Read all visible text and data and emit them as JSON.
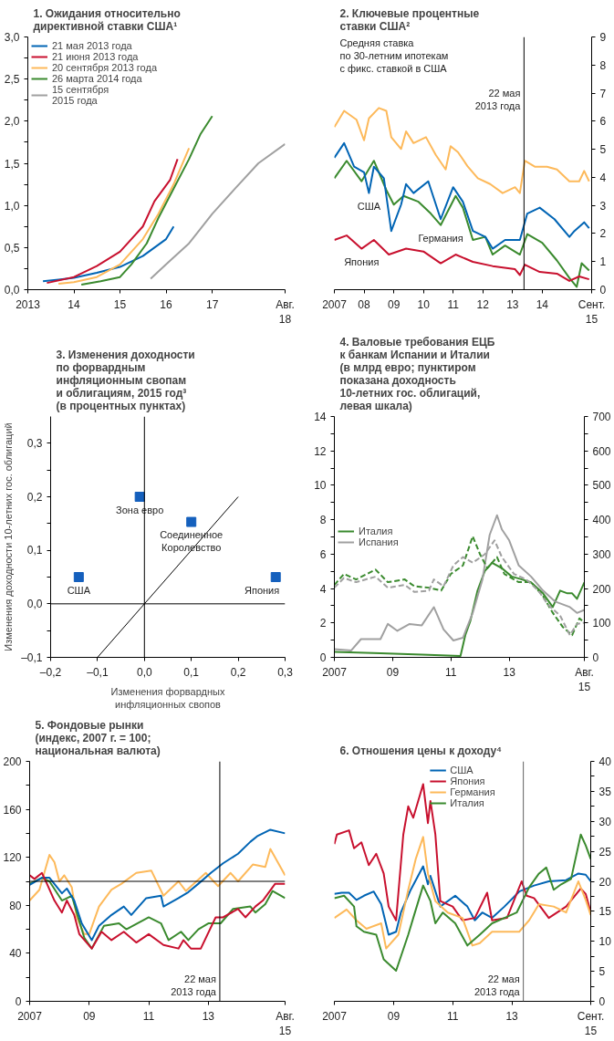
{
  "chart_data": [
    {
      "type": "line",
      "title": "1. Ожидания относительно\nдирективной ставки США¹",
      "xlim": [
        "2013-01",
        "2018-08"
      ],
      "xticks": [
        {
          "value": "2013-01",
          "label": "2013"
        },
        {
          "value": "2014-01",
          "label": "14"
        },
        {
          "value": "2015-01",
          "label": "15"
        },
        {
          "value": "2016-01",
          "label": "16"
        },
        {
          "value": "2017-01",
          "label": "17"
        },
        {
          "value": "2018-08",
          "label": "Авг.\n18"
        }
      ],
      "ylim": [
        0,
        3
      ],
      "yticks": [
        {
          "value": 0,
          "label": "0,0"
        },
        {
          "value": 0.25,
          "label": null
        },
        {
          "value": 0.5,
          "label": "0,5"
        },
        {
          "value": 0.75,
          "label": null
        },
        {
          "value": 1,
          "label": "1,0"
        },
        {
          "value": 1.25,
          "label": null
        },
        {
          "value": 1.5,
          "label": "1,5"
        },
        {
          "value": 1.75,
          "label": null
        },
        {
          "value": 2,
          "label": "2,0"
        },
        {
          "value": 2.25,
          "label": null
        },
        {
          "value": 2.5,
          "label": "2,5"
        },
        {
          "value": 2.75,
          "label": null
        },
        {
          "value": 3,
          "label": "3,0"
        }
      ],
      "legend": "top left",
      "series": [
        {
          "name": "21 мая 2013 года",
          "color": "#0064b4",
          "x": [
            "2013-05",
            "2013-09",
            "2014-01",
            "2014-07",
            "2015-01",
            "2015-07",
            "2015-10",
            "2016-01",
            "2016-03"
          ],
          "values": [
            0.1,
            0.12,
            0.14,
            0.2,
            0.27,
            0.4,
            0.5,
            0.6,
            0.75
          ]
        },
        {
          "name": "21 июня 2013 года",
          "color": "#c8102e",
          "x": [
            "2013-06",
            "2014-01",
            "2014-07",
            "2015-01",
            "2015-07",
            "2015-10",
            "2016-02",
            "2016-04"
          ],
          "values": [
            0.08,
            0.15,
            0.28,
            0.45,
            0.75,
            1.05,
            1.3,
            1.55
          ]
        },
        {
          "name": "20 сентября 2013 года",
          "color": "#fdb95a",
          "x": [
            "2013-09",
            "2014-01",
            "2014-07",
            "2015-01",
            "2015-07",
            "2015-11",
            "2016-03",
            "2016-07"
          ],
          "values": [
            0.07,
            0.09,
            0.15,
            0.3,
            0.6,
            0.9,
            1.25,
            1.68
          ]
        },
        {
          "name": "26 марта 2014 года",
          "color": "#3a8a2e",
          "x": [
            "2014-03",
            "2014-08",
            "2015-01",
            "2015-04",
            "2015-08",
            "2015-11",
            "2016-03",
            "2016-07",
            "2016-10",
            "2017-01"
          ],
          "values": [
            0.06,
            0.1,
            0.15,
            0.3,
            0.55,
            0.85,
            1.2,
            1.55,
            1.85,
            2.06
          ]
        },
        {
          "name": "15 сентября\n2015 года",
          "color": "#a0a0a0",
          "x": [
            "2015-09",
            "2016-01",
            "2016-07",
            "2017-01",
            "2017-07",
            "2018-01",
            "2018-08"
          ],
          "values": [
            0.13,
            0.3,
            0.55,
            0.9,
            1.2,
            1.5,
            1.73
          ]
        }
      ]
    },
    {
      "type": "line",
      "title": "2. Ключевые процентные\nставки США²",
      "subtitle": "Средняя ставка\nпо 30-летним ипотекам\nс фикс. ставкой в США",
      "xlim": [
        "2007-01",
        "2015-09"
      ],
      "xticks": [
        {
          "value": "2007-01",
          "label": "2007"
        },
        {
          "value": "2008-01",
          "label": "08"
        },
        {
          "value": "2009-01",
          "label": "09"
        },
        {
          "value": "2010-01",
          "label": "10"
        },
        {
          "value": "2011-01",
          "label": "11"
        },
        {
          "value": "2012-01",
          "label": "12"
        },
        {
          "value": "2013-01",
          "label": "13"
        },
        {
          "value": "2014-01",
          "label": "14"
        },
        {
          "value": "2015-09",
          "label": "Сент.\n15"
        }
      ],
      "y2lim": [
        0,
        9
      ],
      "y2ticks": [
        0,
        1,
        2,
        3,
        4,
        5,
        6,
        7,
        8,
        9
      ],
      "ref_lines": [
        {
          "axis": "x",
          "value": "2013-05-22",
          "color": "#000000",
          "label": "22 мая\n2013 года"
        }
      ],
      "series": [
        {
          "color": "#fdb95a",
          "axis": "y2",
          "x": [
            "2007-01",
            "2007-05",
            "2007-10",
            "2008-01",
            "2008-03",
            "2008-07",
            "2008-10",
            "2008-12",
            "2009-04",
            "2009-06",
            "2009-09",
            "2010-02",
            "2010-06",
            "2010-10",
            "2010-12",
            "2011-03",
            "2011-07",
            "2011-11",
            "2012-04",
            "2012-09",
            "2013-02",
            "2013-04",
            "2013-06",
            "2013-10",
            "2014-03",
            "2014-07",
            "2014-12",
            "2015-04",
            "2015-06",
            "2015-08"
          ],
          "values": [
            5.79,
            6.37,
            6.05,
            5.32,
            6.1,
            6.47,
            6.37,
            5.43,
            5.01,
            5.64,
            5.22,
            5.43,
            4.8,
            4.28,
            5.11,
            4.9,
            4.38,
            3.97,
            3.76,
            3.44,
            3.65,
            3.44,
            4.59,
            4.38,
            4.38,
            4.28,
            3.86,
            3.86,
            4.23,
            3.86
          ]
        },
        {
          "name": "Германия",
          "color": "#3a8a2e",
          "axis": "y2",
          "x": [
            "2007-01",
            "2007-06",
            "2007-12",
            "2008-05",
            "2008-10",
            "2009-01",
            "2009-05",
            "2009-11",
            "2010-04",
            "2010-08",
            "2011-02",
            "2011-05",
            "2011-09",
            "2012-02",
            "2012-05",
            "2012-10",
            "2013-04",
            "2013-07",
            "2014-01",
            "2014-07",
            "2014-12",
            "2015-03",
            "2015-05",
            "2015-08"
          ],
          "values": [
            3.97,
            4.59,
            3.86,
            4.59,
            3.55,
            3.03,
            3.34,
            3.13,
            2.71,
            2.3,
            3.34,
            2.92,
            1.77,
            1.88,
            1.25,
            1.57,
            1.25,
            1.98,
            1.67,
            1.04,
            0.42,
            0.1,
            0.94,
            0.68
          ]
        },
        {
          "name": "США",
          "color": "#0064b4",
          "axis": "y2",
          "x": [
            "2007-01",
            "2007-05",
            "2007-09",
            "2008-01",
            "2008-03",
            "2008-05",
            "2008-09",
            "2008-12",
            "2009-04",
            "2009-06",
            "2009-09",
            "2010-03",
            "2010-08",
            "2011-01",
            "2011-05",
            "2011-09",
            "2012-02",
            "2012-05",
            "2012-10",
            "2013-04",
            "2013-07",
            "2013-12",
            "2014-06",
            "2014-12",
            "2015-02",
            "2015-06",
            "2015-08"
          ],
          "values": [
            4.7,
            5.22,
            4.38,
            4.18,
            3.44,
            4.38,
            3.97,
            2.09,
            3.03,
            3.76,
            3.44,
            3.86,
            2.51,
            3.65,
            3.13,
            2.09,
            1.88,
            1.46,
            1.77,
            1.77,
            2.71,
            2.92,
            2.51,
            1.88,
            2.09,
            2.4,
            2.19
          ]
        },
        {
          "name": "Япония",
          "color": "#c8102e",
          "axis": "y2",
          "x": [
            "2007-01",
            "2007-06",
            "2007-12",
            "2008-05",
            "2008-11",
            "2009-06",
            "2010-01",
            "2010-08",
            "2011-02",
            "2011-09",
            "2012-05",
            "2013-02",
            "2013-04",
            "2013-06",
            "2013-12",
            "2014-07",
            "2014-12",
            "2015-04",
            "2015-08"
          ],
          "values": [
            1.77,
            1.93,
            1.46,
            1.77,
            1.25,
            1.46,
            1.36,
            0.94,
            1.25,
            0.99,
            0.84,
            0.73,
            0.52,
            0.89,
            0.63,
            0.57,
            0.31,
            0.47,
            0.37
          ]
        }
      ]
    },
    {
      "type": "scatter",
      "title": "3. Изменения доходности\nпо форвардным\nинфляционным свопам\nи облигациям, 2015 год³\n(в процентных пунктах)",
      "xlabel": "Изменения форвардных\nинфляционных свопов",
      "ylabel": "Изменения доходности 10-летних гос. облигаций",
      "xlim": [
        -0.2,
        0.3
      ],
      "xticks": [
        {
          "value": -0.2,
          "label": "–0,2"
        },
        {
          "value": -0.1,
          "label": "–0,1"
        },
        {
          "value": 0,
          "label": "0,0"
        },
        {
          "value": 0.1,
          "label": "0,1"
        },
        {
          "value": 0.2,
          "label": "0,2"
        },
        {
          "value": 0.3,
          "label": "0,3"
        }
      ],
      "ylim": [
        -0.1,
        0.35
      ],
      "yticks": [
        {
          "value": -0.1,
          "label": "–0,1"
        },
        {
          "value": -0.05,
          "label": null
        },
        {
          "value": 0,
          "label": "0,0"
        },
        {
          "value": 0.05,
          "label": null
        },
        {
          "value": 0.1,
          "label": "0,1"
        },
        {
          "value": 0.15,
          "label": null
        },
        {
          "value": 0.2,
          "label": "0,2"
        },
        {
          "value": 0.25,
          "label": null
        },
        {
          "value": 0.3,
          "label": "0,3"
        }
      ],
      "ref_lines": [
        {
          "axis": "x",
          "value": 0,
          "color": "#000000"
        },
        {
          "axis": "y",
          "value": 0,
          "color": "#000000"
        }
      ],
      "annotations": [
        {
          "text": "США",
          "x": -0.14,
          "y": 0.05
        },
        {
          "text": "Зона евро",
          "x": -0.01,
          "y": 0.2
        },
        {
          "text": "Соединенное\nКоролевство",
          "x": 0.1,
          "y": 0.153
        },
        {
          "text": "Япония",
          "x": 0.28,
          "y": 0.05
        }
      ],
      "series": [
        {
          "color": "#1560bd",
          "marker": "square",
          "x": [
            -0.14,
            -0.01,
            0.1,
            0.28
          ],
          "values": [
            0.05,
            0.2,
            0.153,
            0.05
          ]
        },
        {
          "type": "line",
          "color": "#000000",
          "x": [
            -0.1,
            0.2
          ],
          "values": [
            -0.1,
            0.2
          ]
        }
      ]
    },
    {
      "type": "line",
      "title": "4. Валовые требования ЕЦБ\nк банкам Испании и Италии\n(в млрд евро; пунктиром\nпоказана доходность\n10-летних гос. облигаций,\nлевая шкала)",
      "xlim": [
        "2007-01",
        "2015-08"
      ],
      "xticks": [
        {
          "value": "2007-01",
          "label": "2007"
        },
        {
          "value": "2009-01",
          "label": "09"
        },
        {
          "value": "2011-01",
          "label": "11"
        },
        {
          "value": "2013-01",
          "label": "13"
        },
        {
          "value": "2015-08",
          "label": "Авг.\n15"
        }
      ],
      "ylim": [
        0,
        14
      ],
      "yticks": [
        0,
        {
          "value": 1,
          "label": null
        },
        2,
        {
          "value": 3,
          "label": null
        },
        4,
        {
          "value": 5,
          "label": null
        },
        6,
        {
          "value": 7,
          "label": null
        },
        8,
        {
          "value": 9,
          "label": null
        },
        10,
        {
          "value": 11,
          "label": null
        },
        12,
        {
          "value": 13,
          "label": null
        },
        14
      ],
      "y2lim": [
        0,
        700
      ],
      "y2ticks": [
        0,
        {
          "value": 50,
          "label": null
        },
        100,
        {
          "value": 150,
          "label": null
        },
        200,
        {
          "value": 250,
          "label": null
        },
        300,
        {
          "value": 350,
          "label": null
        },
        400,
        {
          "value": 450,
          "label": null
        },
        500,
        {
          "value": 550,
          "label": null
        },
        600,
        {
          "value": 650,
          "label": null
        },
        700
      ],
      "legend": "left",
      "series": [
        {
          "name": "Италия",
          "color": "#3a8a2e",
          "axis": "y2",
          "x": [
            "2007-01",
            "2008-08",
            "2010-01",
            "2011-05",
            "2011-07",
            "2011-09",
            "2011-12",
            "2012-03",
            "2012-06",
            "2012-10",
            "2013-02",
            "2013-06",
            "2013-10",
            "2014-03",
            "2014-07",
            "2014-10",
            "2015-01",
            "2015-03",
            "2015-05",
            "2015-08"
          ],
          "values": [
            16,
            12,
            8,
            4,
            65,
            105,
            194,
            251,
            275,
            259,
            235,
            227,
            218,
            186,
            146,
            194,
            186,
            186,
            170,
            218
          ]
        },
        {
          "name": "Испания",
          "color": "#a0a0a0",
          "axis": "y2",
          "x": [
            "2007-01",
            "2007-08",
            "2007-12",
            "2008-08",
            "2008-11",
            "2009-03",
            "2009-08",
            "2010-01",
            "2010-06",
            "2010-10",
            "2011-02",
            "2011-06",
            "2011-10",
            "2012-02",
            "2012-05",
            "2012-08",
            "2012-10",
            "2013-01",
            "2013-05",
            "2013-10",
            "2014-03",
            "2014-08",
            "2015-02",
            "2015-05",
            "2015-08"
          ],
          "values": [
            24,
            20,
            53,
            53,
            97,
            77,
            97,
            93,
            146,
            81,
            49,
            57,
            129,
            227,
            356,
            413,
            372,
            340,
            267,
            235,
            194,
            162,
            146,
            129,
            138
          ]
        },
        {
          "color": "#3a8a2e",
          "line_style": "dashed",
          "x": [
            "2007-01",
            "2007-05",
            "2007-10",
            "2008-06",
            "2008-11",
            "2009-06",
            "2009-10",
            "2010-04",
            "2010-09",
            "2011-01",
            "2011-06",
            "2011-10",
            "2012-01",
            "2012-04",
            "2012-08",
            "2012-11",
            "2013-05",
            "2013-10",
            "2014-03",
            "2014-07",
            "2014-11",
            "2015-03",
            "2015-06",
            "2015-08"
          ],
          "values": [
            4.21,
            4.85,
            4.53,
            5.1,
            4.37,
            4.53,
            4.13,
            4.05,
            3.88,
            4.85,
            5.34,
            7.04,
            5.99,
            5.18,
            5.83,
            4.85,
            4.37,
            4.37,
            3.56,
            2.59,
            1.78,
            1.29,
            2.27,
            2.02
          ]
        },
        {
          "color": "#a0a0a0",
          "line_style": "dashed",
          "x": [
            "2007-01",
            "2007-05",
            "2007-10",
            "2008-06",
            "2008-11",
            "2009-06",
            "2009-10",
            "2010-04",
            "2010-06",
            "2010-10",
            "2011-02",
            "2011-06",
            "2011-10",
            "2012-03",
            "2012-07",
            "2012-10",
            "2013-03",
            "2013-08",
            "2014-01",
            "2014-05",
            "2014-10",
            "2015-02",
            "2015-05",
            "2015-08"
          ],
          "values": [
            4.05,
            4.61,
            4.37,
            4.69,
            4.05,
            4.21,
            3.8,
            3.88,
            4.53,
            4.13,
            5.34,
            5.83,
            5.5,
            5.99,
            6.8,
            5.83,
            4.85,
            4.53,
            3.88,
            3.07,
            2.43,
            1.29,
            1.94,
            2.02
          ]
        }
      ]
    },
    {
      "type": "line",
      "title": "5. Фондовые рынки\n(индекс, 2007 г. = 100;\nнациональная валюта)",
      "xlim": [
        "2007-01",
        "2015-08"
      ],
      "xticks": [
        {
          "value": "2007-01",
          "label": "2007"
        },
        {
          "value": "2009-01",
          "label": "09"
        },
        {
          "value": "2011-01",
          "label": "11"
        },
        {
          "value": "2013-01",
          "label": "13"
        },
        {
          "value": "2015-08",
          "label": "Авг.\n15"
        }
      ],
      "ylim": [
        0,
        200
      ],
      "yticks": [
        0,
        {
          "value": 20,
          "label": null
        },
        40,
        {
          "value": 60,
          "label": null
        },
        80,
        {
          "value": 100,
          "label": null
        },
        120,
        {
          "value": 140,
          "label": null
        },
        160,
        {
          "value": 180,
          "label": null
        },
        200
      ],
      "ref_lines": [
        {
          "axis": "y",
          "value": 100,
          "color": "#000000"
        },
        {
          "axis": "x",
          "value": "2013-05-22",
          "color": "#000000",
          "label": "22 мая\n2013 года"
        }
      ],
      "series": [
        {
          "color": "#fdb95a",
          "x": [
            "2007-01",
            "2007-05",
            "2007-09",
            "2007-11",
            "2008-01",
            "2008-03",
            "2008-06",
            "2008-08",
            "2008-11",
            "2009-01",
            "2009-05",
            "2009-10",
            "2010-02",
            "2010-08",
            "2011-02",
            "2011-07",
            "2012-01",
            "2012-04",
            "2012-12",
            "2013-05",
            "2013-10",
            "2014-01",
            "2014-07",
            "2014-12",
            "2015-02",
            "2015-08"
          ],
          "values": [
            84,
            93,
            122,
            116,
            100,
            105,
            95,
            70,
            56,
            56,
            79,
            93,
            98,
            107,
            109,
            88,
            100,
            92,
            107,
            96,
            107,
            100,
            114,
            112,
            127,
            105
          ]
        },
        {
          "color": "#3a8a2e",
          "x": [
            "2007-01",
            "2007-06",
            "2007-09",
            "2008-02",
            "2008-06",
            "2008-08",
            "2008-11",
            "2009-02",
            "2009-07",
            "2010-01",
            "2010-04",
            "2011-01",
            "2011-06",
            "2011-09",
            "2012-02",
            "2012-05",
            "2012-09",
            "2013-01",
            "2013-06",
            "2013-11",
            "2014-06",
            "2014-08",
            "2014-12",
            "2015-03",
            "2015-08"
          ],
          "values": [
            98,
            103,
            100,
            84,
            88,
            74,
            53,
            44,
            63,
            65,
            60,
            70,
            65,
            51,
            58,
            51,
            60,
            65,
            65,
            77,
            79,
            74,
            81,
            92,
            86
          ]
        },
        {
          "color": "#0064b4",
          "x": [
            "2007-01",
            "2007-06",
            "2007-09",
            "2008-02",
            "2008-04",
            "2008-07",
            "2008-10",
            "2009-02",
            "2009-05",
            "2009-10",
            "2010-03",
            "2010-06",
            "2010-12",
            "2011-06",
            "2011-07",
            "2012-01",
            "2012-05",
            "2012-09",
            "2013-02",
            "2013-07",
            "2014-01",
            "2014-06",
            "2014-09",
            "2015-02",
            "2015-08"
          ],
          "values": [
            97,
            103,
            103,
            90,
            94,
            84,
            65,
            51,
            63,
            72,
            79,
            72,
            86,
            88,
            79,
            86,
            91,
            98,
            107,
            115,
            123,
            133,
            138,
            143,
            140
          ]
        },
        {
          "color": "#c8102e",
          "x": [
            "2007-01",
            "2007-03",
            "2007-06",
            "2007-08",
            "2007-11",
            "2008-02",
            "2008-04",
            "2008-07",
            "2008-09",
            "2009-02",
            "2009-06",
            "2009-10",
            "2010-03",
            "2010-08",
            "2011-01",
            "2011-07",
            "2012-01",
            "2012-03",
            "2012-06",
            "2012-10",
            "2013-04",
            "2013-07",
            "2014-01",
            "2014-04",
            "2014-08",
            "2014-11",
            "2015-04",
            "2015-08"
          ],
          "values": [
            105,
            102,
            107,
            98,
            84,
            74,
            84,
            72,
            56,
            44,
            58,
            51,
            58,
            49,
            56,
            47,
            44,
            51,
            44,
            44,
            70,
            70,
            77,
            70,
            79,
            84,
            98,
            98
          ]
        }
      ]
    },
    {
      "type": "line",
      "title": "6. Отношения цены к доходу⁴",
      "xlim": [
        "2007-01",
        "2015-09"
      ],
      "xticks": [
        {
          "value": "2007-01",
          "label": "2007"
        },
        {
          "value": "2009-01",
          "label": "09"
        },
        {
          "value": "2011-01",
          "label": "11"
        },
        {
          "value": "2013-01",
          "label": "13"
        },
        {
          "value": "2015-09",
          "label": "Сент.\n15"
        }
      ],
      "y2lim": [
        0,
        40
      ],
      "y2ticks": [
        0,
        {
          "value": 2.5,
          "label": null
        },
        5,
        {
          "value": 7.5,
          "label": null
        },
        10,
        {
          "value": 12.5,
          "label": null
        },
        15,
        {
          "value": 17.5,
          "label": null
        },
        20,
        {
          "value": 22.5,
          "label": null
        },
        25,
        {
          "value": 27.5,
          "label": null
        },
        30,
        {
          "value": 32.5,
          "label": null
        },
        35,
        {
          "value": 37.5,
          "label": null
        },
        40
      ],
      "legend": "top",
      "ref_lines": [
        {
          "axis": "x",
          "value": "2013-05-22",
          "color": "#606060",
          "label": "22 мая\n2013 года"
        }
      ],
      "series": [
        {
          "name": "США",
          "color": "#0064b4",
          "axis": "y2",
          "x": [
            "2007-01",
            "2007-04",
            "2007-07",
            "2007-10",
            "2008-01",
            "2008-05",
            "2008-08",
            "2008-11",
            "2009-02",
            "2009-04",
            "2009-08",
            "2010-01",
            "2010-03",
            "2010-04",
            "2010-08",
            "2011-02",
            "2011-07",
            "2011-10",
            "2012-01",
            "2012-05",
            "2012-10",
            "2013-04",
            "2013-10",
            "2014-04",
            "2014-11",
            "2015-04",
            "2015-07",
            "2015-09"
          ],
          "values": [
            17.9,
            18.1,
            18.1,
            16.9,
            17.6,
            18.3,
            16.2,
            11.1,
            11.6,
            14.8,
            18.6,
            22.5,
            19.5,
            20.9,
            15.8,
            17.6,
            15.8,
            13.5,
            14.8,
            13.9,
            15.8,
            18.3,
            19.3,
            20,
            20.2,
            21.3,
            21.1,
            20
          ]
        },
        {
          "name": "Япония",
          "color": "#c8102e",
          "axis": "y2",
          "x": [
            "2007-01",
            "2007-02",
            "2007-07",
            "2007-09",
            "2007-12",
            "2008-03",
            "2008-06",
            "2008-09",
            "2008-11",
            "2009-02",
            "2009-05",
            "2009-07",
            "2009-09",
            "2010-01",
            "2010-03",
            "2010-04",
            "2010-06",
            "2010-08",
            "2011-01",
            "2011-05",
            "2011-10",
            "2012-03",
            "2012-05",
            "2012-11",
            "2013-05",
            "2013-07",
            "2013-10",
            "2014-04",
            "2014-11",
            "2015-05",
            "2015-07",
            "2015-09"
          ],
          "values": [
            26.2,
            27.8,
            28.5,
            25.5,
            26.5,
            22.7,
            24.6,
            21.3,
            15.8,
            13.5,
            27.8,
            32.5,
            30.6,
            36.2,
            29.7,
            33.4,
            27.8,
            16.7,
            15.8,
            13.5,
            13.9,
            18.1,
            13.5,
            13.9,
            20,
            17.6,
            17.2,
            13.9,
            15.8,
            18.8,
            17.9,
            14.8
          ]
        },
        {
          "name": "Германия",
          "color": "#fdb95a",
          "axis": "y2",
          "x": [
            "2007-01",
            "2007-06",
            "2007-10",
            "2008-02",
            "2008-08",
            "2008-10",
            "2009-03",
            "2009-07",
            "2009-10",
            "2010-01",
            "2010-03",
            "2010-06",
            "2010-11",
            "2011-05",
            "2011-09",
            "2011-12",
            "2012-05",
            "2012-10",
            "2013-04",
            "2013-08",
            "2013-12",
            "2014-06",
            "2014-11",
            "2015-04",
            "2015-07",
            "2015-09"
          ],
          "values": [
            13.9,
            15.3,
            13.5,
            12.1,
            13,
            8.8,
            11.1,
            18.6,
            23.7,
            27.4,
            21.3,
            16.7,
            14.8,
            13.9,
            9.3,
            9.7,
            11.6,
            11.6,
            11.6,
            13.5,
            16.2,
            15.8,
            14.8,
            20,
            16.9,
            14.4
          ]
        },
        {
          "name": "Италия",
          "color": "#3a8a2e",
          "axis": "y2",
          "x": [
            "2007-01",
            "2007-05",
            "2007-09",
            "2007-10",
            "2008-01",
            "2008-06",
            "2008-09",
            "2009-02",
            "2009-07",
            "2009-09",
            "2010-01",
            "2010-04",
            "2010-06",
            "2010-09",
            "2011-02",
            "2011-07",
            "2011-12",
            "2012-05",
            "2012-10",
            "2013-03",
            "2013-08",
            "2013-12",
            "2014-03",
            "2014-06",
            "2014-09",
            "2015-01",
            "2015-05",
            "2015-07",
            "2015-09"
          ],
          "values": [
            17.2,
            17.6,
            15.8,
            12.5,
            11.6,
            11.1,
            7,
            5.1,
            11.1,
            13.9,
            19.3,
            16.7,
            13,
            14.8,
            13,
            9.3,
            11.1,
            13,
            13.9,
            14.8,
            19,
            21.3,
            22.3,
            18.6,
            19.5,
            20.4,
            27.8,
            26,
            23.7
          ]
        }
      ]
    }
  ]
}
